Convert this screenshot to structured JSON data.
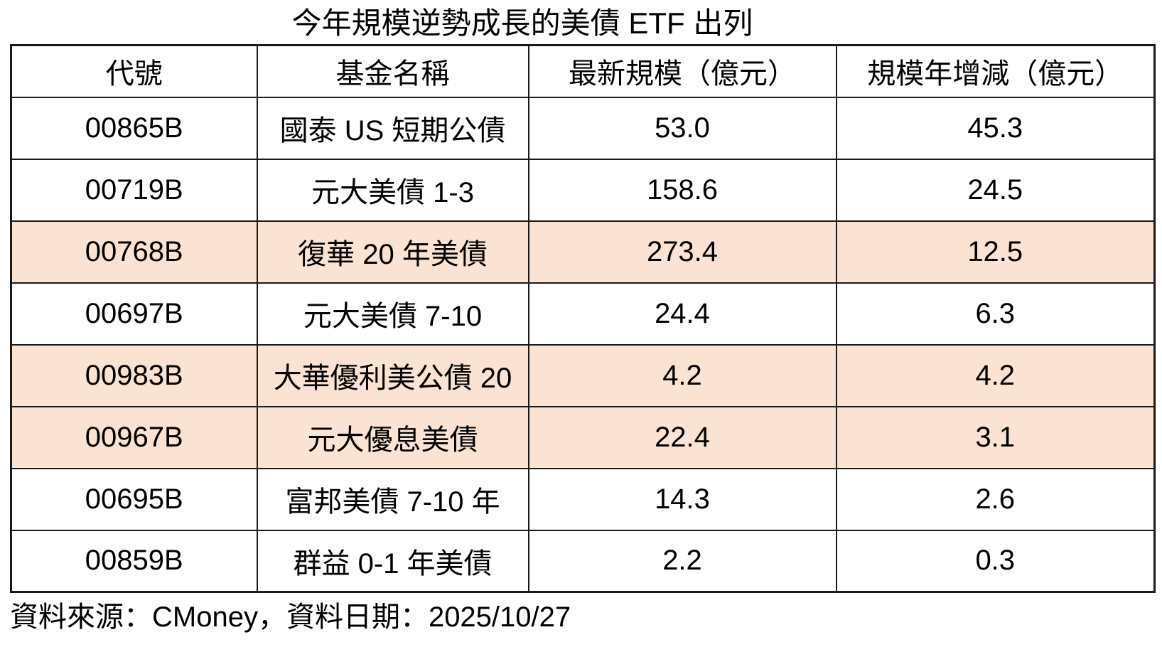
{
  "title": "今年規模逆勢成長的美債 ETF 出列",
  "table": {
    "columns": [
      "代號",
      "基金名稱",
      "最新規模（億元）",
      "規模年增減（億元）"
    ],
    "rows": [
      {
        "code": "00865B",
        "name": "國泰 US 短期公債",
        "scale": "53.0",
        "change": "45.3",
        "highlight": false
      },
      {
        "code": "00719B",
        "name": "元大美債 1-3",
        "scale": "158.6",
        "change": "24.5",
        "highlight": false
      },
      {
        "code": "00768B",
        "name": "復華 20 年美債",
        "scale": "273.4",
        "change": "12.5",
        "highlight": true
      },
      {
        "code": "00697B",
        "name": "元大美債 7-10",
        "scale": "24.4",
        "change": "6.3",
        "highlight": false
      },
      {
        "code": "00983B",
        "name": "大華優利美公債 20",
        "scale": "4.2",
        "change": "4.2",
        "highlight": true
      },
      {
        "code": "00967B",
        "name": "元大優息美債",
        "scale": "22.4",
        "change": "3.1",
        "highlight": true
      },
      {
        "code": "00695B",
        "name": "富邦美債 7-10 年",
        "scale": "14.3",
        "change": "2.6",
        "highlight": false
      },
      {
        "code": "00859B",
        "name": "群益 0-1 年美債",
        "scale": "2.2",
        "change": "0.3",
        "highlight": false
      }
    ]
  },
  "footer": "資料來源：CMoney，資料日期：2025/10/27",
  "colors": {
    "highlight": "#fae3d3",
    "border": "#1a1a1a",
    "text": "#000000",
    "background": "#ffffff"
  },
  "chart_data": {
    "type": "table",
    "title": "今年規模逆勢成長的美債 ETF 出列",
    "columns": [
      "代號",
      "基金名稱",
      "最新規模（億元）",
      "規模年增減（億元）"
    ],
    "rows": [
      [
        "00865B",
        "國泰 US 短期公債",
        53.0,
        45.3
      ],
      [
        "00719B",
        "元大美債 1-3",
        158.6,
        24.5
      ],
      [
        "00768B",
        "復華 20 年美債",
        273.4,
        12.5
      ],
      [
        "00697B",
        "元大美債 7-10",
        24.4,
        6.3
      ],
      [
        "00983B",
        "大華優利美公債 20",
        4.2,
        4.2
      ],
      [
        "00967B",
        "元大優息美債",
        22.4,
        3.1
      ],
      [
        "00695B",
        "富邦美債 7-10 年",
        14.3,
        2.6
      ],
      [
        "00859B",
        "群益 0-1 年美債",
        2.2,
        0.3
      ]
    ],
    "highlighted_row_indices": [
      2,
      4,
      5
    ],
    "source_note": "資料來源：CMoney，資料日期：2025/10/27"
  }
}
